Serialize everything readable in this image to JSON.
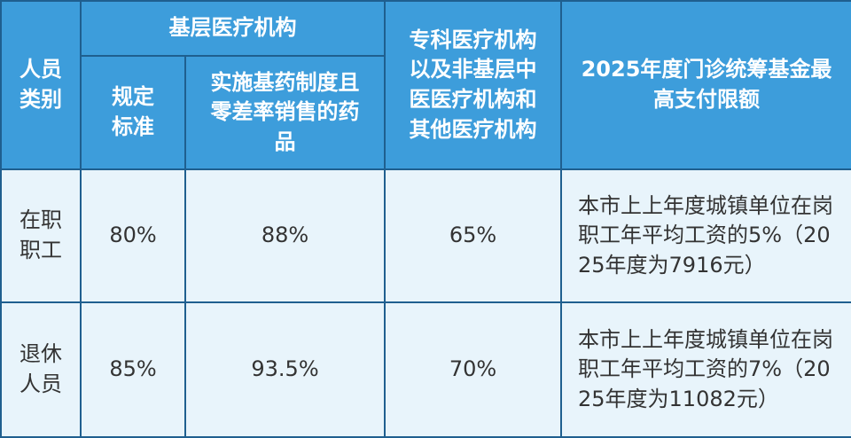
{
  "table": {
    "header": [
      "人员类别",
      "基层医疗机构",
      "规定标准",
      "实施基药制度且零差率销售的药品",
      "专科医疗机构以及非基层中医医疗机构和其他医疗机构",
      "2025年度门诊统筹基金最高支付限额"
    ],
    "rows": [
      [
        "在职职工",
        "80%",
        "88%",
        "65%",
        "本市上上年度城镇单位在岗职工年平均工资的5%（2025年度为7916元）"
      ],
      [
        "退休人员",
        "85%",
        "93.5%",
        "70%",
        "本市上上年度城镇单位在岗职工年平均工资的7%（2025年度为11082元）"
      ]
    ]
  }
}
